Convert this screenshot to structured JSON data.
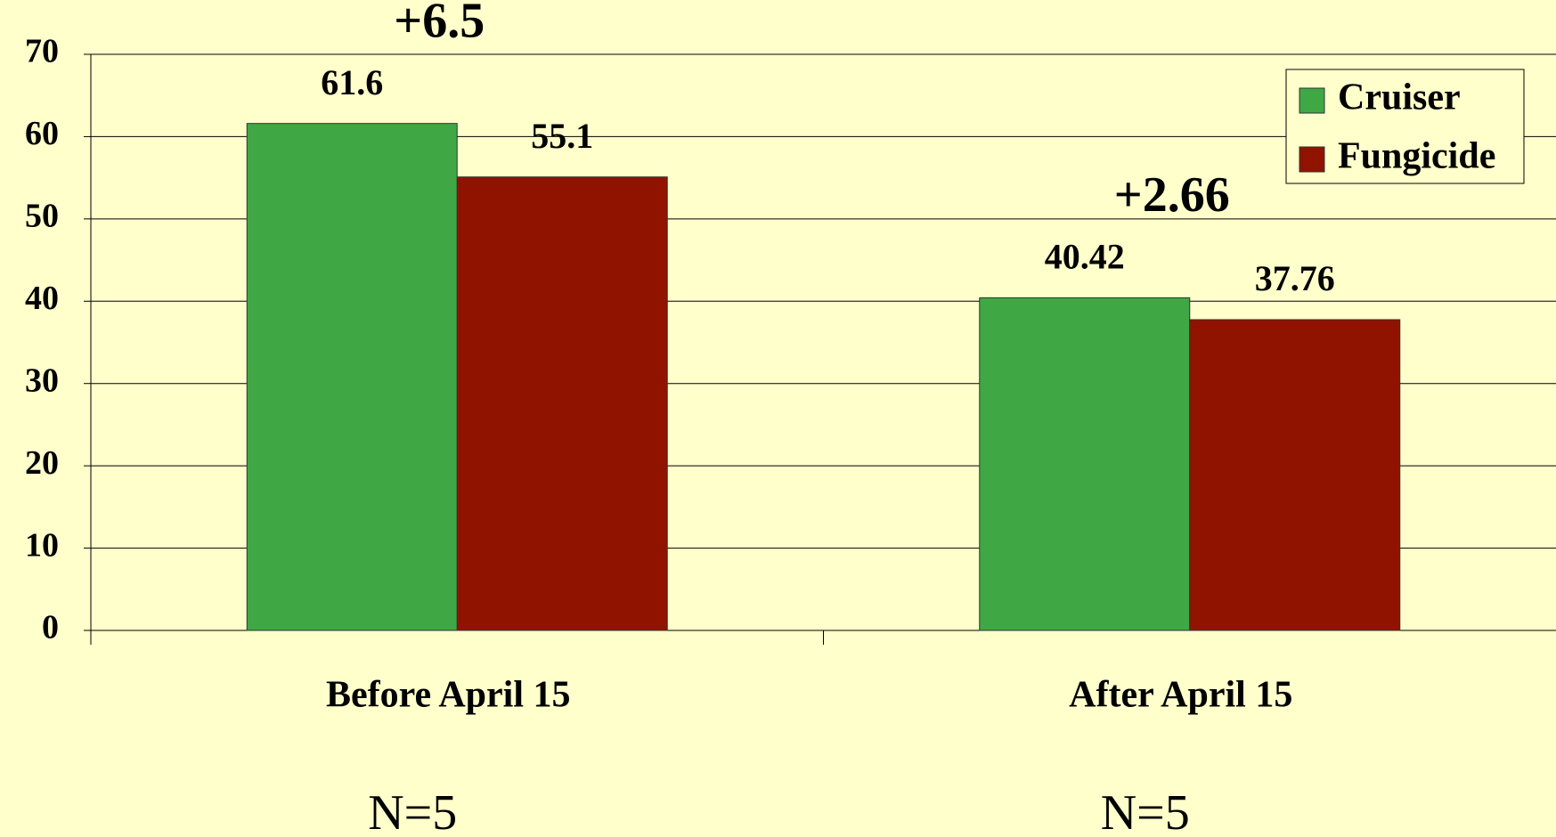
{
  "chart_data": {
    "type": "bar",
    "categories": [
      "Before April 15",
      "After April 15"
    ],
    "series": [
      {
        "name": "Cruiser",
        "color": "#3fa845",
        "values": [
          61.6,
          40.42
        ]
      },
      {
        "name": "Fungicide",
        "color": "#901300",
        "values": [
          55.1,
          37.76
        ]
      }
    ],
    "annotations": [
      "+6.5",
      "+2.66"
    ],
    "category_notes": [
      "N=5",
      "N=5"
    ],
    "ylim": [
      0,
      70
    ],
    "yticks": [
      0,
      10,
      20,
      30,
      40,
      50,
      60,
      70
    ],
    "grid": true,
    "legend": "top-right"
  }
}
